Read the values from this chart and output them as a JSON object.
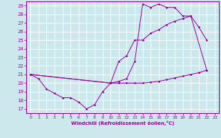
{
  "xlabel": "Windchill (Refroidissement éolien,°C)",
  "xlim": [
    -0.5,
    23.5
  ],
  "ylim": [
    16.5,
    29.5
  ],
  "yticks": [
    17,
    18,
    19,
    20,
    21,
    22,
    23,
    24,
    25,
    26,
    27,
    28,
    29
  ],
  "xticks": [
    0,
    1,
    2,
    3,
    4,
    5,
    6,
    7,
    8,
    9,
    10,
    11,
    12,
    13,
    14,
    15,
    16,
    17,
    18,
    19,
    20,
    21,
    22,
    23
  ],
  "background_color": "#cde8ec",
  "line_color": "#990099",
  "grid_color": "#ffffff",
  "line_A_x": [
    0,
    1,
    2,
    3,
    4,
    5,
    6,
    7,
    8,
    9,
    10,
    11,
    12,
    13,
    14,
    15,
    16,
    17,
    18,
    19,
    20,
    21,
    22
  ],
  "line_A_y": [
    21.0,
    20.5,
    19.3,
    18.8,
    18.3,
    18.3,
    17.8,
    17.0,
    17.5,
    19.0,
    20.0,
    20.0,
    20.0,
    20.0,
    20.0,
    20.1,
    20.2,
    20.4,
    20.6,
    20.8,
    21.0,
    21.2,
    21.5
  ],
  "line_B_x": [
    0,
    10,
    11,
    12,
    13,
    14,
    15,
    16,
    17,
    18,
    19,
    20,
    22
  ],
  "line_B_y": [
    21.0,
    20.0,
    20.2,
    20.5,
    22.5,
    29.2,
    28.8,
    29.2,
    28.8,
    28.8,
    27.8,
    27.8,
    21.5
  ],
  "line_C_x": [
    0,
    10,
    11,
    12,
    13,
    14,
    15,
    16,
    17,
    18,
    19,
    20,
    21,
    22
  ],
  "line_C_y": [
    21.0,
    20.0,
    22.5,
    23.2,
    25.0,
    25.0,
    25.8,
    26.2,
    26.8,
    27.2,
    27.5,
    27.8,
    26.5,
    25.0
  ]
}
